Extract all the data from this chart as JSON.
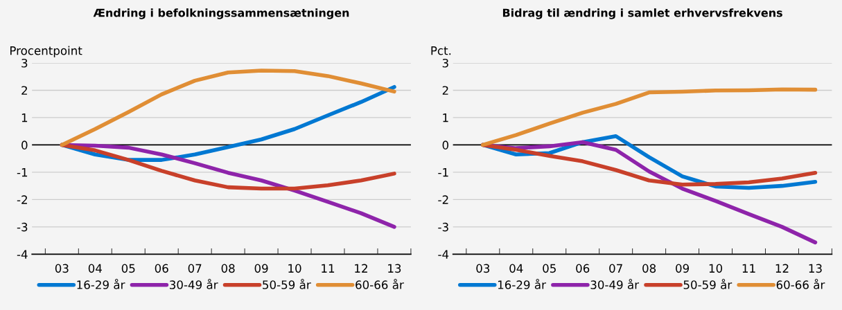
{
  "chart_data": [
    {
      "type": "line",
      "title": "Ændring i befolkningssammensætningen",
      "ylabel": "Procentpoint",
      "categories": [
        "03",
        "04",
        "05",
        "06",
        "07",
        "08",
        "09",
        "10",
        "11",
        "12",
        "13"
      ],
      "ylim": [
        -4,
        3
      ],
      "yticks": [
        -4,
        -3,
        -2,
        -1,
        0,
        1,
        2,
        3
      ],
      "grid": "y",
      "legend": "bottom",
      "ref_lines": [
        {
          "axis": "y",
          "value": 0,
          "color": "#000000"
        }
      ],
      "series": [
        {
          "name": "16-29 år",
          "color": "#0078d2",
          "values": [
            0,
            -0.35,
            -0.55,
            -0.55,
            -0.35,
            -0.08,
            0.2,
            0.58,
            1.08,
            1.57,
            2.12
          ]
        },
        {
          "name": "30-49 år",
          "color": "#8e24aa",
          "values": [
            0,
            -0.03,
            -0.1,
            -0.35,
            -0.67,
            -1.02,
            -1.3,
            -1.67,
            -2.08,
            -2.5,
            -3.0
          ]
        },
        {
          "name": "50-59 år",
          "color": "#c8402a",
          "values": [
            0,
            -0.2,
            -0.55,
            -0.95,
            -1.3,
            -1.55,
            -1.6,
            -1.6,
            -1.48,
            -1.3,
            -1.05
          ]
        },
        {
          "name": "60-66 år",
          "color": "#e08e35",
          "values": [
            0,
            0.58,
            1.2,
            1.85,
            2.35,
            2.65,
            2.72,
            2.7,
            2.52,
            2.25,
            1.95
          ]
        }
      ]
    },
    {
      "type": "line",
      "title": "Bidrag til ændring i samlet erhvervsfrekvens",
      "ylabel": "Pct.",
      "categories": [
        "03",
        "04",
        "05",
        "06",
        "07",
        "08",
        "09",
        "10",
        "11",
        "12",
        "13"
      ],
      "ylim": [
        -4,
        3
      ],
      "yticks": [
        -4,
        -3,
        -2,
        -1,
        0,
        1,
        2,
        3
      ],
      "grid": "y",
      "legend": "bottom",
      "ref_lines": [
        {
          "axis": "y",
          "value": 0,
          "color": "#000000"
        }
      ],
      "series": [
        {
          "name": "16-29 år",
          "color": "#0078d2",
          "values": [
            0,
            -0.35,
            -0.3,
            0.1,
            0.32,
            -0.45,
            -1.15,
            -1.52,
            -1.57,
            -1.5,
            -1.35
          ]
        },
        {
          "name": "30-49 år",
          "color": "#8e24aa",
          "values": [
            0,
            -0.12,
            -0.05,
            0.1,
            -0.18,
            -0.97,
            -1.6,
            -2.05,
            -2.53,
            -3.0,
            -3.57
          ]
        },
        {
          "name": "50-59 år",
          "color": "#c8402a",
          "values": [
            0,
            -0.18,
            -0.4,
            -0.6,
            -0.92,
            -1.3,
            -1.45,
            -1.43,
            -1.37,
            -1.23,
            -1.02
          ]
        },
        {
          "name": "60-66 år",
          "color": "#e08e35",
          "values": [
            0,
            0.36,
            0.78,
            1.18,
            1.5,
            1.92,
            1.95,
            1.99,
            2.0,
            2.03,
            2.02
          ]
        }
      ]
    }
  ]
}
